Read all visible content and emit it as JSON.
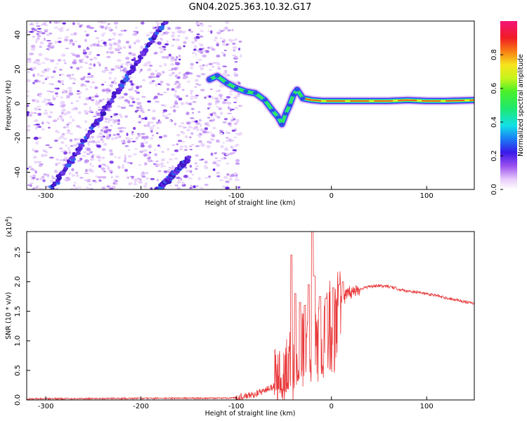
{
  "title": "GN04.2025.363.10.32.G17",
  "colors": {
    "snr_line": "#e8383a",
    "track": "#5a1fd6",
    "scatter": "#a070ee",
    "frame": "#000000"
  },
  "chart_data": [
    {
      "type": "heatmap",
      "name": "spectrogram",
      "xlabel": "Height of straight line (km)",
      "ylabel": "Frequency (Hz)",
      "xlim": [
        -320,
        150
      ],
      "ylim": [
        -50,
        48
      ],
      "xticks": [
        -300,
        -200,
        -100,
        0,
        100
      ],
      "yticks": [
        -40,
        -20,
        0,
        20,
        40
      ],
      "xtick_labels": [
        "-300",
        "-200",
        "-100",
        "0",
        "100"
      ],
      "ytick_labels": [
        "-40",
        "-20",
        "0",
        "20",
        "40"
      ],
      "noise_region_x": [
        -320,
        -95
      ],
      "tracks": [
        {
          "name": "diagonal-track-upper",
          "from": [
            -300,
            -55
          ],
          "to": [
            -175,
            48
          ]
        },
        {
          "name": "diagonal-track-lower",
          "from": [
            -190,
            -55
          ],
          "to": [
            -150,
            -32
          ]
        }
      ],
      "signal_path": [
        [
          -128,
          14
        ],
        [
          -120,
          16
        ],
        [
          -110,
          12
        ],
        [
          -100,
          9
        ],
        [
          -90,
          7
        ],
        [
          -80,
          6
        ],
        [
          -70,
          2
        ],
        [
          -62,
          -4
        ],
        [
          -56,
          -8
        ],
        [
          -52,
          -12
        ],
        [
          -48,
          -6
        ],
        [
          -44,
          -1
        ],
        [
          -40,
          5
        ],
        [
          -36,
          8
        ],
        [
          -30,
          3
        ],
        [
          -20,
          2
        ],
        [
          -10,
          1.5
        ],
        [
          0,
          1.5
        ],
        [
          20,
          1.5
        ],
        [
          40,
          1.5
        ],
        [
          60,
          1.5
        ],
        [
          80,
          2
        ],
        [
          100,
          1.5
        ],
        [
          120,
          1.5
        ],
        [
          150,
          2
        ]
      ],
      "colorbar": {
        "label": "Normalized spectral amplitude",
        "range": [
          0,
          1
        ],
        "ticks": [
          0.0,
          0.2,
          0.4,
          0.6,
          0.8
        ],
        "tick_labels": [
          "0.0",
          "0.2",
          "0.4",
          "0.6",
          "0.8"
        ]
      }
    },
    {
      "type": "line",
      "name": "snr",
      "xlabel": "Height of straight line (km)",
      "ylabel": "SNR (10 * v/v)",
      "multiplier": "(x10",
      "multiplier_exp": "4",
      "multiplier_close": ")",
      "xlim": [
        -320,
        150
      ],
      "ylim": [
        0,
        2.85
      ],
      "xticks": [
        -300,
        -200,
        -100,
        0,
        100
      ],
      "yticks": [
        0.0,
        0.5,
        1.0,
        1.5,
        2.0,
        2.5
      ],
      "xtick_labels": [
        "-300",
        "-200",
        "-100",
        "0",
        "100"
      ],
      "ytick_labels": [
        "0.0",
        "0.5",
        "1.0",
        "1.5",
        "2.0",
        "2.5"
      ],
      "series": [
        {
          "name": "SNR",
          "x": [
            -320,
            -150,
            -110,
            -100,
            -90,
            -80,
            -70,
            -60,
            -50,
            -45,
            -40,
            -35,
            -30,
            -25,
            -20,
            -15,
            -10,
            -5,
            0,
            5,
            10,
            20,
            30,
            40,
            50,
            60,
            70,
            80,
            90,
            100,
            110,
            120,
            130,
            140,
            150
          ],
          "y": [
            0.02,
            0.03,
            0.03,
            0.04,
            0.06,
            0.1,
            0.16,
            0.24,
            0.34,
            0.45,
            0.62,
            0.75,
            0.85,
            0.95,
            1.05,
            0.9,
            1.1,
            1.3,
            1.45,
            1.6,
            1.7,
            1.82,
            1.88,
            1.92,
            1.93,
            1.92,
            1.88,
            1.84,
            1.82,
            1.8,
            1.77,
            1.73,
            1.7,
            1.66,
            1.63
          ]
        }
      ],
      "spikes": [
        {
          "x": -42,
          "y": 2.45
        },
        {
          "x": -38,
          "y": 1.8
        },
        {
          "x": -33,
          "y": 1.65
        },
        {
          "x": -28,
          "y": 1.6
        },
        {
          "x": -24,
          "y": 1.95
        },
        {
          "x": -20,
          "y": 2.85
        },
        {
          "x": -18,
          "y": 2.1
        },
        {
          "x": -12,
          "y": 1.75
        },
        {
          "x": -6,
          "y": 1.72
        },
        {
          "x": 2,
          "y": 1.9
        },
        {
          "x": 8,
          "y": 1.95
        },
        {
          "x": 12,
          "y": 2.0
        }
      ]
    }
  ]
}
